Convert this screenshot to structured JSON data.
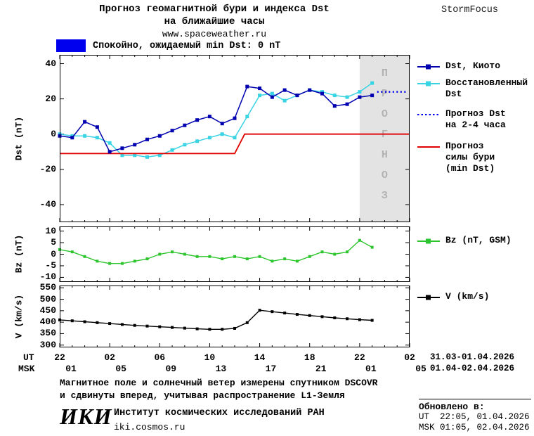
{
  "header": {
    "title_line1": "Прогноз геомагнитной бури и индекса Dst",
    "title_line2": "на ближайшие часы",
    "site": "www.spaceweather.ru",
    "brand": "StormFocus"
  },
  "quiet_legend": {
    "label": "Спокойно, ожидаемый min Dst: 0 nT",
    "swatch": {
      "color": "#0000EE",
      "style": "fill"
    }
  },
  "xaxis": {
    "ut_label": "UT",
    "msk_label": "MSK",
    "tick_hours": [
      0,
      4,
      8,
      12,
      16,
      20,
      24,
      28
    ],
    "ut_ticks": [
      "22",
      "02",
      "06",
      "10",
      "14",
      "18",
      "22",
      "02"
    ],
    "msk_ticks": [
      "01",
      "05",
      "09",
      "13",
      "17",
      "21",
      "01",
      "05"
    ],
    "date_ut": "31.03-01.04.2026",
    "date_msk": "01.04-02.04.2026"
  },
  "chart_data": [
    {
      "id": "dst",
      "type": "line",
      "ylabel": "Dst (nT)",
      "ylim": [
        -50,
        45
      ],
      "yticks": [
        40,
        20,
        0,
        -20,
        -40
      ],
      "xlim": [
        0,
        28
      ],
      "grid": false,
      "forecast_region": {
        "from": 24,
        "to": 28,
        "label": "ПРОГНОЗ",
        "fill": "#e3e3e3"
      },
      "series": [
        {
          "name": "Восстановленный Dst",
          "color": "#38D4E4",
          "marker": "square",
          "msize": 5,
          "width": 1.5,
          "x": [
            0,
            1,
            2,
            3,
            4,
            5,
            6,
            7,
            8,
            9,
            10,
            11,
            12,
            13,
            14,
            15,
            16,
            17,
            18,
            19,
            20,
            21,
            22,
            23,
            24,
            25
          ],
          "values": [
            0,
            -1,
            -1,
            -2,
            -5,
            -12,
            -12,
            -13,
            -12,
            -9,
            -6,
            -4,
            -2,
            0,
            -2,
            10,
            22,
            23,
            19,
            22,
            25,
            24,
            22,
            21,
            24,
            29
          ]
        },
        {
          "name": "Прогноз силы бури (min Dst)",
          "color": "#E00000",
          "width": 1.8,
          "x": [
            0,
            14,
            14.8,
            28
          ],
          "values": [
            -11,
            -11,
            0,
            0
          ]
        },
        {
          "name": "Dst, Киото",
          "color": "#0000B0",
          "marker": "square",
          "msize": 5,
          "width": 1.5,
          "x": [
            0,
            1,
            2,
            3,
            4,
            5,
            6,
            7,
            8,
            9,
            10,
            11,
            12,
            13,
            14,
            15,
            16,
            17,
            18,
            19,
            20,
            21,
            22,
            23,
            24,
            25
          ],
          "values": [
            -1,
            -2,
            7,
            4,
            -10,
            -8,
            -6,
            -3,
            -1,
            2,
            5,
            8,
            10,
            6,
            9,
            27,
            26,
            21,
            25,
            22,
            25,
            23,
            16,
            17,
            21,
            22
          ]
        },
        {
          "name": "Прогноз Dst на 2-4 часа",
          "color": "#0000EE",
          "style": "dotted",
          "width": 2.5,
          "x": [
            25.4,
            27.8
          ],
          "values": [
            24,
            24
          ]
        }
      ]
    },
    {
      "id": "bz",
      "type": "line",
      "ylabel": "Bz (nT)",
      "ylim": [
        -12,
        12
      ],
      "yticks": [
        10,
        5,
        0,
        -5,
        -10
      ],
      "xlim": [
        0,
        28
      ],
      "grid": false,
      "series": [
        {
          "name": "Bz (nT, GSM)",
          "color": "#2DC52D",
          "marker": "square",
          "msize": 4,
          "width": 1.4,
          "x": [
            0,
            1,
            2,
            3,
            4,
            5,
            6,
            7,
            8,
            9,
            10,
            11,
            12,
            13,
            14,
            15,
            16,
            17,
            18,
            19,
            20,
            21,
            22,
            23,
            24,
            25
          ],
          "values": [
            2,
            1,
            -1,
            -3,
            -4,
            -4,
            -3,
            -2,
            0,
            1,
            0,
            -1,
            -1,
            -2,
            -1,
            -2,
            -1,
            -3,
            -2,
            -3,
            -1,
            1,
            0,
            1,
            6,
            3
          ]
        }
      ]
    },
    {
      "id": "v",
      "type": "line",
      "ylabel": "V (km/s)",
      "ylim": [
        290,
        560
      ],
      "yticks": [
        550,
        500,
        450,
        400,
        350,
        300
      ],
      "xlim": [
        0,
        28
      ],
      "grid": false,
      "series": [
        {
          "name": "V (km/s)",
          "color": "#000000",
          "marker": "square",
          "msize": 4,
          "width": 1.4,
          "x": [
            0,
            1,
            2,
            3,
            4,
            5,
            6,
            7,
            8,
            9,
            10,
            11,
            12,
            13,
            14,
            15,
            16,
            17,
            18,
            19,
            20,
            21,
            22,
            23,
            24,
            25
          ],
          "values": [
            410,
            406,
            402,
            398,
            394,
            390,
            386,
            383,
            380,
            377,
            374,
            371,
            369,
            369,
            373,
            398,
            452,
            446,
            440,
            434,
            429,
            424,
            419,
            415,
            411,
            408
          ]
        }
      ]
    }
  ],
  "legend_main": {
    "items": [
      {
        "label_lines": [
          "Dst, Киото"
        ],
        "swatch": {
          "color": "#0000B0",
          "style": "marker"
        }
      },
      {
        "label_lines": [
          "Восстановленный",
          "Dst"
        ],
        "swatch": {
          "color": "#38D4E4",
          "style": "marker"
        }
      },
      {
        "label_lines": [
          "Прогноз Dst",
          "на 2-4 часа"
        ],
        "swatch": {
          "color": "#0000EE",
          "style": "dotted"
        }
      },
      {
        "label_lines": [
          "Прогноз",
          "силы бури",
          "(min Dst)"
        ],
        "swatch": {
          "color": "#E00000",
          "style": "line"
        }
      }
    ]
  },
  "legend_bz": {
    "label": "Bz (nT, GSM)",
    "swatch": {
      "color": "#2DC52D",
      "style": "marker"
    }
  },
  "legend_v": {
    "label": "V (km/s)",
    "swatch": {
      "color": "#000000",
      "style": "marker"
    }
  },
  "footer": {
    "note_line1": "Магнитное поле и солнечный ветер измерены спутником DSCOVR",
    "note_line2": "и сдвинуты вперед, учитывая распространение L1-Земля",
    "logo": "ИКИ",
    "institute": "Институт космических исследований РАН",
    "site": "iki.cosmos.ru",
    "updated_label": "Обновлено в:",
    "updated_ut": "UT  22:05, 01.04.2026",
    "updated_msk": "MSK 01:05, 02.04.2026"
  }
}
